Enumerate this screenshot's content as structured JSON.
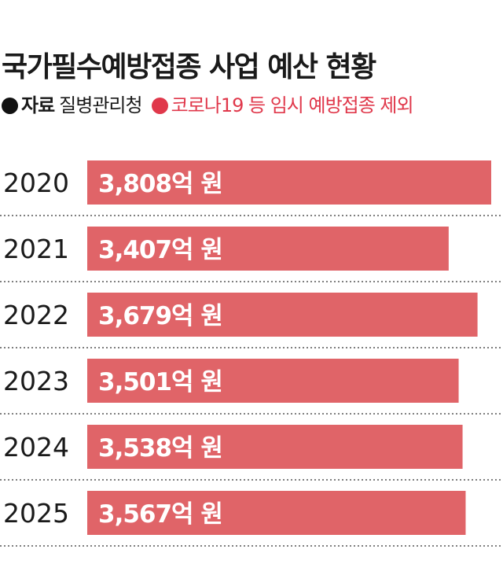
{
  "header": {
    "title": "국가필수예방접종 사업 예산 현황",
    "source_key": "자료",
    "source_value": "질병관리청",
    "note": "코로나19 등 임시 예방접종 제외"
  },
  "colors": {
    "bar": "#e06468",
    "note_dot": "#e0384b",
    "source_dot": "#111111",
    "separator": "#555555",
    "label": "#1a1a1a",
    "value_text": "#ffffff"
  },
  "chart_data": {
    "type": "bar",
    "orientation": "horizontal",
    "categories": [
      "2020",
      "2021",
      "2022",
      "2023",
      "2024",
      "2025"
    ],
    "values": [
      3808,
      3407,
      3679,
      3501,
      3538,
      3567
    ],
    "value_labels": [
      "3,808억 원",
      "3,407억 원",
      "3,679억 원",
      "3,501억 원",
      "3,538억 원",
      "3,567억 원"
    ],
    "xlim": [
      0,
      3808
    ],
    "grid": false,
    "legend": "none"
  }
}
